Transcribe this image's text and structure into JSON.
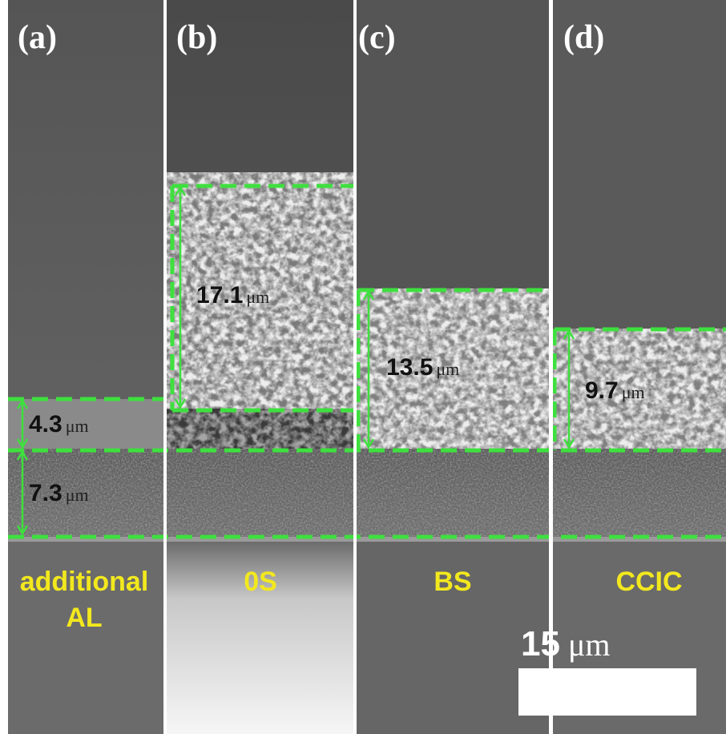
{
  "panels": [
    {
      "label": "(a)",
      "sample": [
        "additional",
        "AL"
      ],
      "measurements": [
        {
          "value": "4.3",
          "unit": "μm"
        },
        {
          "value": "7.3",
          "unit": "μm"
        }
      ]
    },
    {
      "label": "(b)",
      "sample": [
        "0S"
      ],
      "measurements": [
        {
          "value": "17.1",
          "unit": "μm"
        }
      ]
    },
    {
      "label": "(c)",
      "sample": [
        "BS"
      ],
      "measurements": [
        {
          "value": "13.5",
          "unit": "μm"
        }
      ]
    },
    {
      "label": "(d)",
      "sample": [
        "CCIC"
      ],
      "measurements": [
        {
          "value": "9.7",
          "unit": "μm"
        }
      ]
    }
  ],
  "scale_bar": {
    "value": "15",
    "unit": "μm"
  }
}
